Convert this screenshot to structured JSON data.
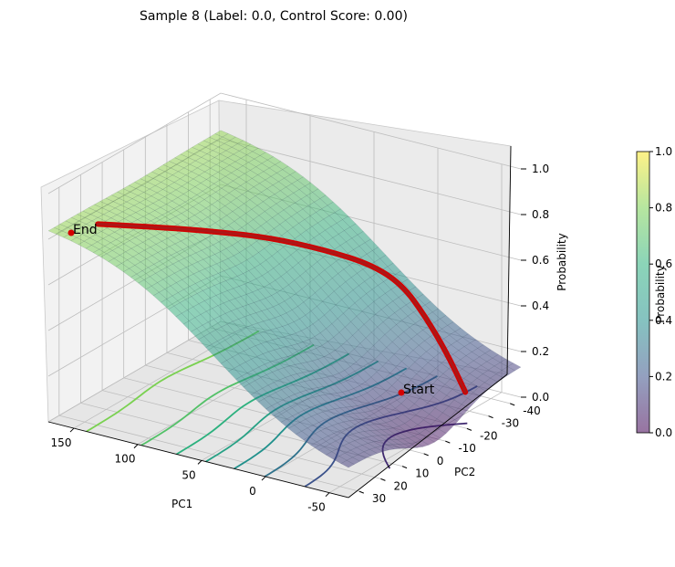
{
  "chart_data": {
    "type": "surface3d",
    "title": "Sample 8 (Label: 0.0, Control Score: 0.00)",
    "x_axis": {
      "label": "PC1",
      "ticks": [
        150,
        100,
        50,
        0,
        -50
      ],
      "range": [
        -65,
        170
      ]
    },
    "y_axis": {
      "label": "PC2",
      "ticks": [
        -40,
        -30,
        -20,
        -10,
        0,
        10,
        20,
        30
      ],
      "range": [
        -45,
        35
      ]
    },
    "z_axis": {
      "label": "Probability",
      "ticks": [
        0.0,
        0.2,
        0.4,
        0.6,
        0.8,
        1.0
      ],
      "range": [
        0,
        1
      ]
    },
    "colorbar": {
      "label": "Probability",
      "ticks": [
        0.0,
        0.2,
        0.4,
        0.6,
        0.8,
        1.0
      ],
      "colormap": "viridis"
    },
    "surface": {
      "colormap": "viridis",
      "alpha": 0.5
    },
    "trajectory": {
      "color": "#d40000",
      "start_label": "Start",
      "end_label": "End",
      "points": [
        {
          "x": -30,
          "y": -40,
          "z": 0.0
        },
        {
          "x": -28,
          "y": -33,
          "z": 0.2
        },
        {
          "x": -22,
          "y": -26,
          "z": 0.4
        },
        {
          "x": -14,
          "y": -20,
          "z": 0.56
        },
        {
          "x": 0,
          "y": -14,
          "z": 0.66
        },
        {
          "x": 25,
          "y": -8,
          "z": 0.72
        },
        {
          "x": 60,
          "y": -2,
          "z": 0.76
        },
        {
          "x": 100,
          "y": 3,
          "z": 0.76
        },
        {
          "x": 140,
          "y": 8,
          "z": 0.75
        },
        {
          "x": 170,
          "y": 12,
          "z": 0.74
        }
      ]
    },
    "contour_levels": [
      0.1,
      0.2,
      0.3,
      0.4,
      0.5,
      0.6,
      0.7,
      0.8
    ]
  }
}
